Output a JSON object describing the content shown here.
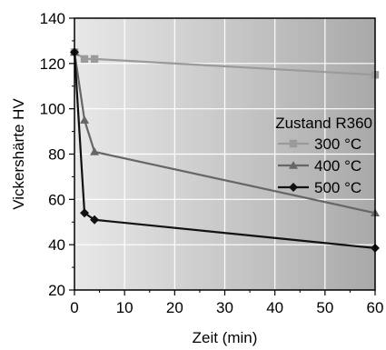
{
  "chart_data": {
    "type": "line",
    "title": "",
    "xlabel": "Zeit (min)",
    "ylabel": "Vickershärte HV",
    "xlim": [
      0,
      60
    ],
    "ylim": [
      20,
      140
    ],
    "xticks": [
      0,
      10,
      20,
      30,
      40,
      50,
      60
    ],
    "yticks": [
      20,
      40,
      60,
      80,
      100,
      120,
      140
    ],
    "grid": true,
    "legend": {
      "title": "Zustand R360",
      "placement": "right-middle"
    },
    "series": [
      {
        "name": "300 °C",
        "color": "#9a9a9a",
        "marker": "square",
        "x": [
          0,
          2,
          4,
          60
        ],
        "y": [
          125,
          122,
          122,
          115
        ]
      },
      {
        "name": "400 °C",
        "color": "#666666",
        "marker": "triangle",
        "x": [
          0,
          2,
          4,
          60
        ],
        "y": [
          125,
          95,
          81,
          54
        ]
      },
      {
        "name": "500 °C",
        "color": "#111111",
        "marker": "diamond",
        "x": [
          0,
          2,
          4,
          60
        ],
        "y": [
          125,
          54,
          51,
          38.5
        ]
      }
    ]
  }
}
